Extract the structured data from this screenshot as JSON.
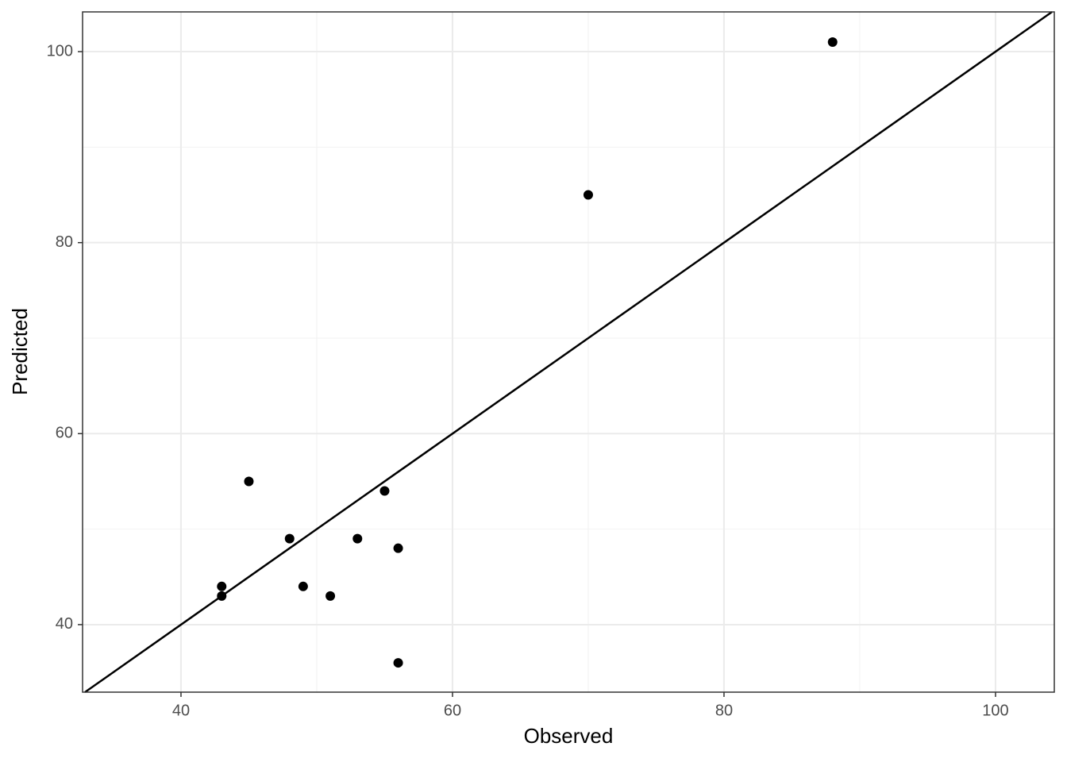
{
  "chart_data": {
    "type": "scatter",
    "x_label": "Observed",
    "y_label": "Predicted",
    "x": [
      88,
      70,
      45,
      55,
      48,
      53,
      56,
      43,
      43,
      49,
      51,
      56
    ],
    "y": [
      101,
      85,
      55,
      54,
      49,
      49,
      48,
      44,
      43,
      44,
      43,
      36
    ],
    "color": "#000000",
    "xlim": [
      32.75,
      104.33
    ],
    "ylim": [
      32.93,
      104.16
    ],
    "xticks": [
      40,
      60,
      80,
      100
    ],
    "yticks": [
      40,
      60,
      80,
      100
    ],
    "xminor": [
      50,
      70,
      90
    ],
    "yminor": [
      50,
      70,
      90
    ],
    "grid": true,
    "identity_line": true
  }
}
